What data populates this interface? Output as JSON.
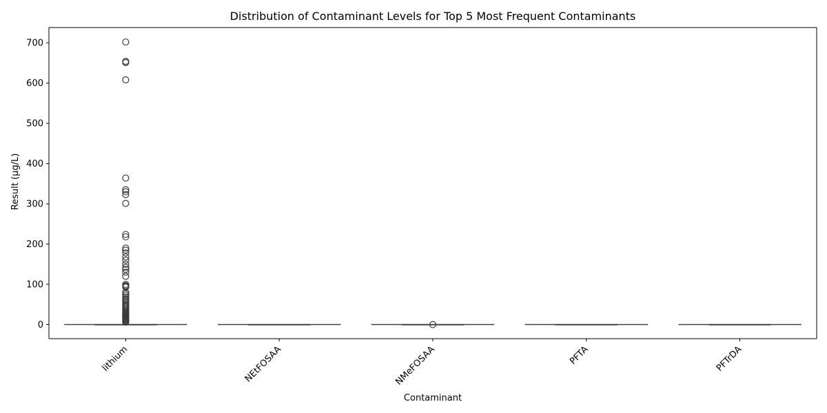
{
  "chart_data": {
    "type": "box",
    "title": "Distribution of Contaminant Levels for Top 5 Most Frequent Contaminants",
    "xlabel": "Contaminant",
    "ylabel": "Result (µg/L)",
    "ylim": [
      -35,
      738
    ],
    "yticks": [
      0,
      100,
      200,
      300,
      400,
      500,
      600,
      700
    ],
    "grid": false,
    "categories": [
      "lithium",
      "NEtFOSAA",
      "NMeFOSAA",
      "PFTA",
      "PFTrDA"
    ],
    "box_color": "#3a3a3a",
    "boxes": [
      {
        "category": "lithium",
        "q1": 0,
        "median": 0,
        "q3": 0,
        "whisker_low": 0,
        "whisker_high": 0,
        "outliers": [
          702,
          654,
          651,
          608,
          364,
          335,
          330,
          323,
          301,
          224,
          218,
          190,
          185,
          178,
          168,
          160,
          150,
          142,
          137,
          130,
          120,
          100,
          97,
          95,
          93,
          80,
          76,
          72,
          68,
          63,
          60,
          56,
          53,
          50,
          47,
          44,
          41,
          38,
          35,
          32,
          30,
          28,
          26,
          24,
          22,
          20,
          18,
          16,
          14,
          12,
          10,
          8,
          6
        ]
      },
      {
        "category": "NEtFOSAA",
        "q1": 0,
        "median": 0,
        "q3": 0,
        "whisker_low": 0,
        "whisker_high": 0,
        "outliers": []
      },
      {
        "category": "NMeFOSAA",
        "q1": 0,
        "median": 0,
        "q3": 0,
        "whisker_low": 0,
        "whisker_high": 0,
        "outliers": [
          0.1
        ]
      },
      {
        "category": "PFTA",
        "q1": 0,
        "median": 0,
        "q3": 0,
        "whisker_low": 0,
        "whisker_high": 0,
        "outliers": []
      },
      {
        "category": "PFTrDA",
        "q1": 0,
        "median": 0,
        "q3": 0,
        "whisker_low": 0,
        "whisker_high": 0,
        "outliers": []
      }
    ]
  }
}
